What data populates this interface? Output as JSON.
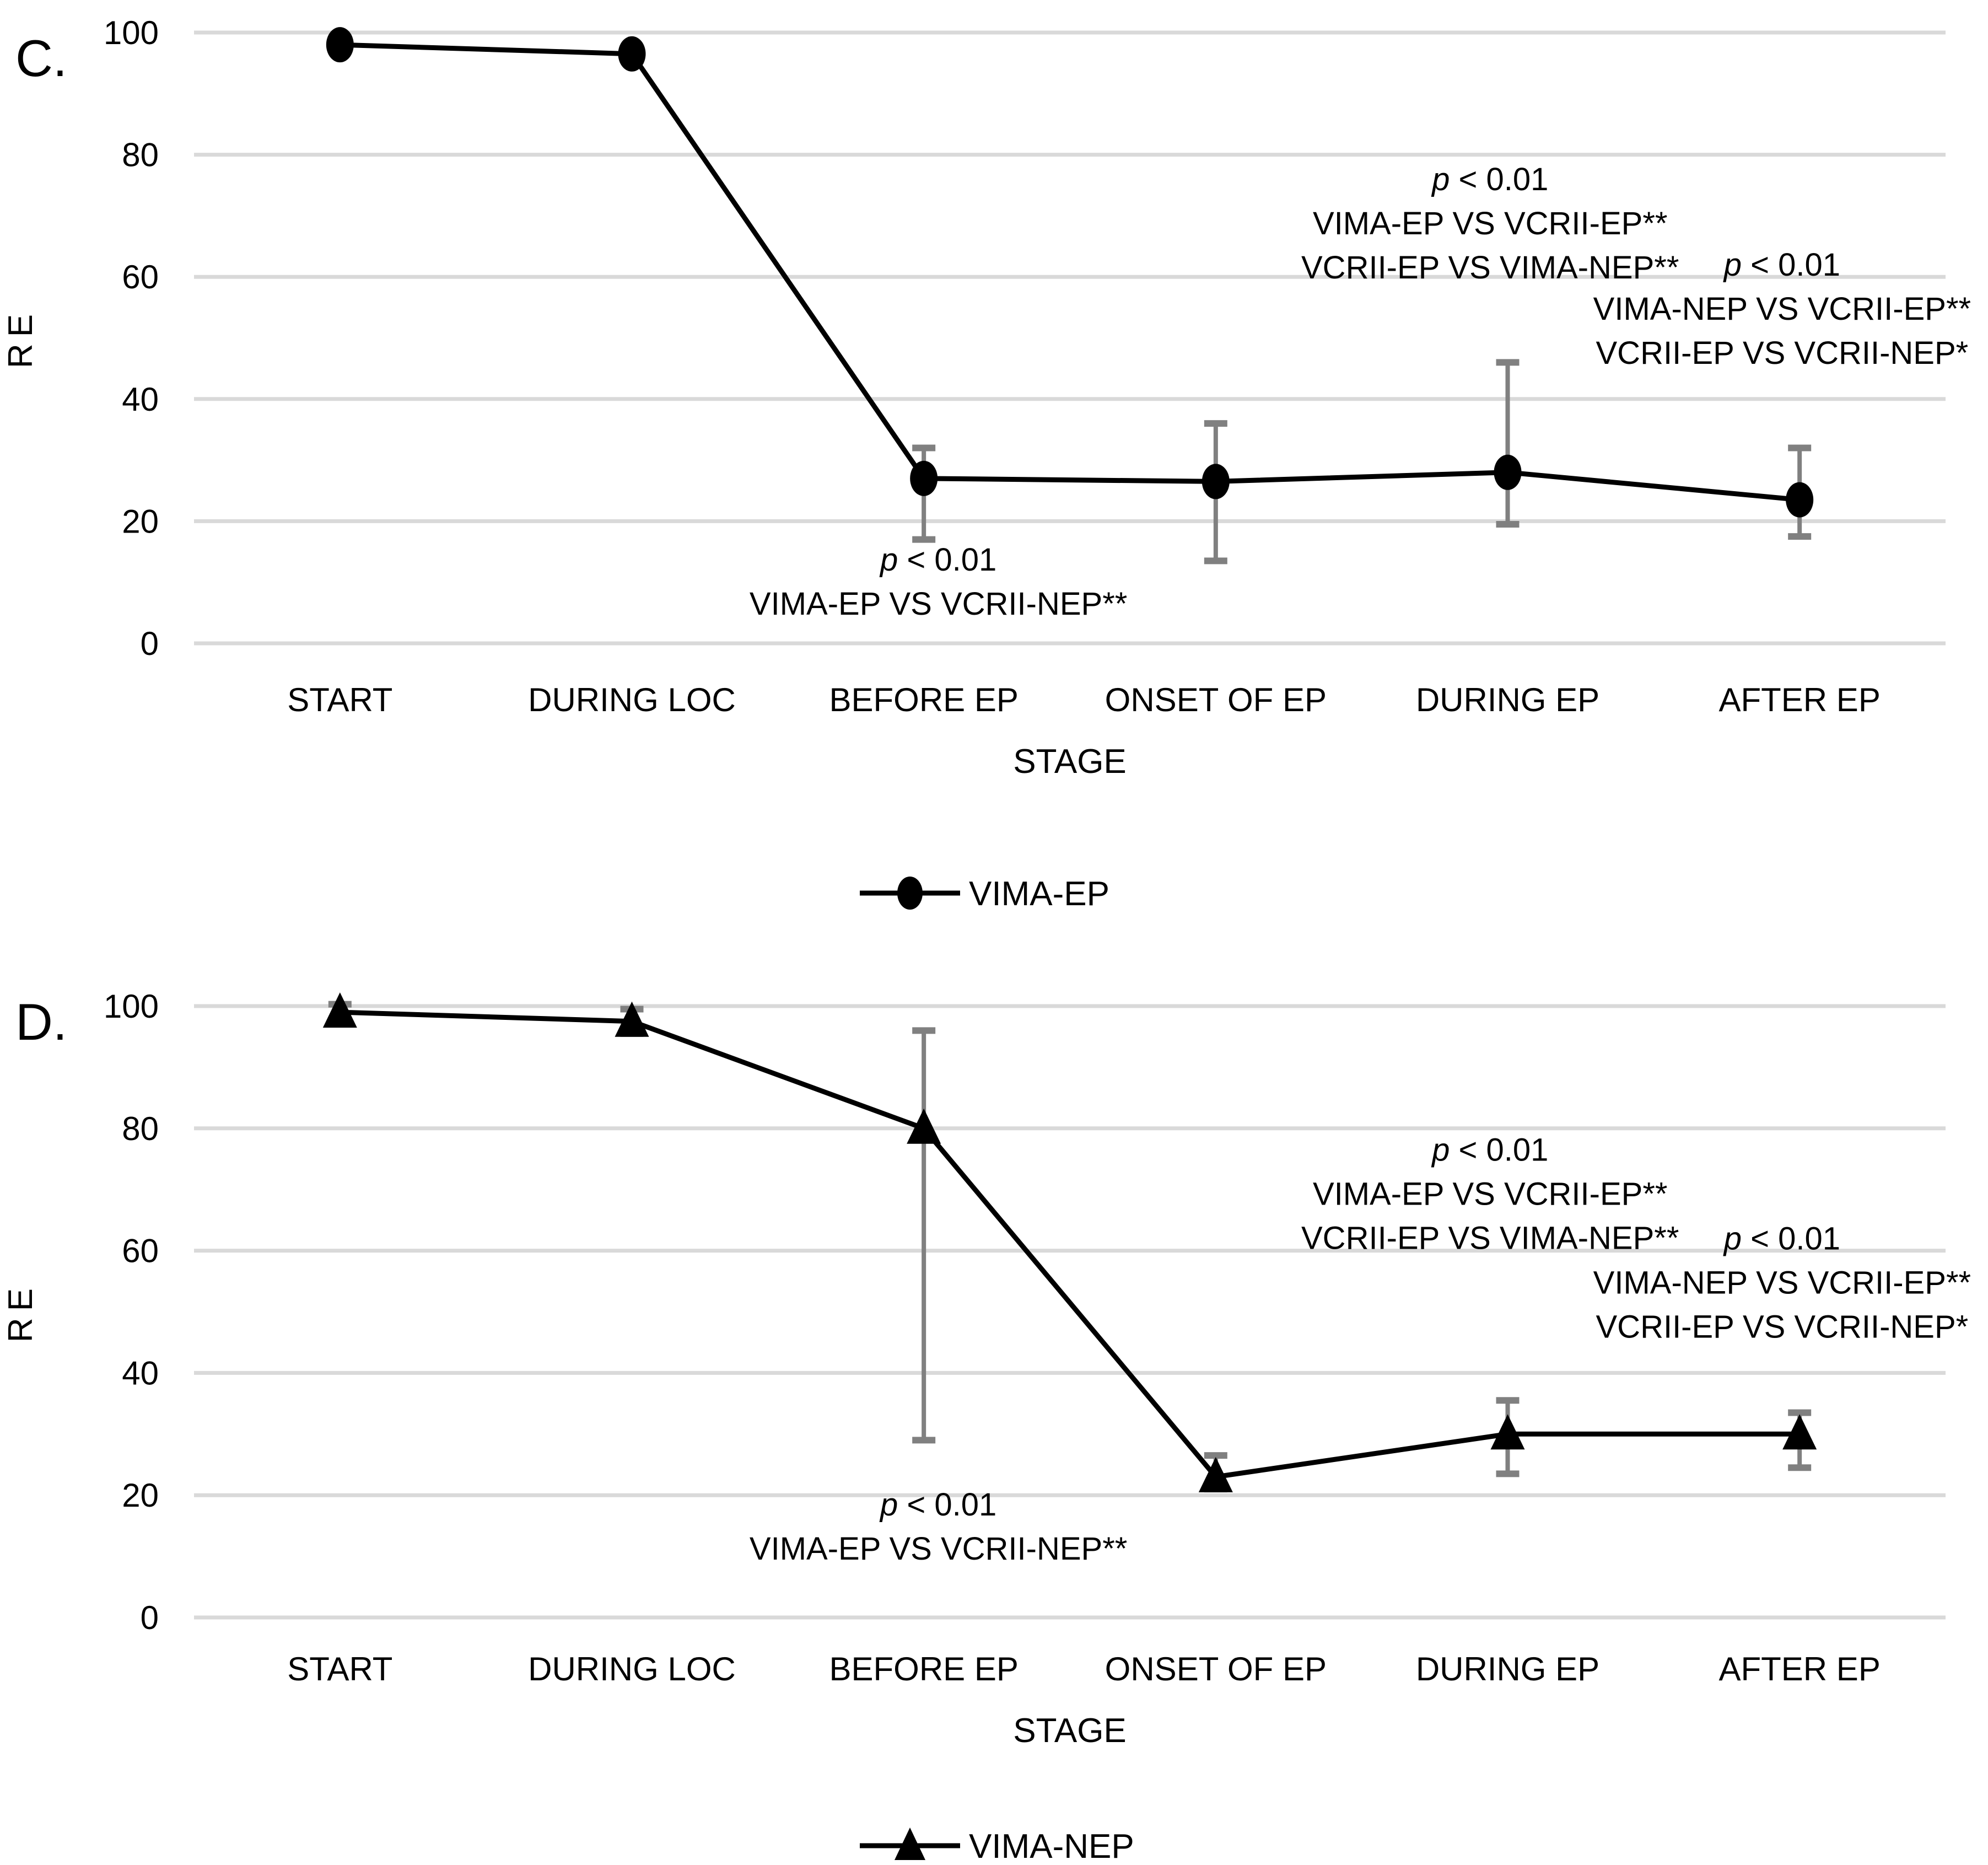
{
  "figure": {
    "panels": [
      {
        "label": "C."
      },
      {
        "label": "D."
      }
    ]
  },
  "chart_data": [
    {
      "type": "line",
      "panel": "C",
      "categories": [
        "START",
        "DURING LOC",
        "BEFORE EP",
        "ONSET OF EP",
        "DURING EP",
        "AFTER EP"
      ],
      "xlabel": "STAGE",
      "ylabel": "RE",
      "ylim": [
        0,
        100
      ],
      "yticks": [
        0,
        20,
        40,
        60,
        80,
        100
      ],
      "grid": "horizontal",
      "legend_position": "bottom-center",
      "colors": {
        "gridline": "#d9d9d9",
        "error_bar": "#808080",
        "series": "#000000",
        "text": "#000000"
      },
      "series": [
        {
          "name": "VIMA-EP",
          "marker": "circle",
          "color": "#000000",
          "values": [
            98,
            96.5,
            27,
            26.5,
            28,
            23.5
          ],
          "error_low": [
            null,
            null,
            17,
            13.5,
            19.5,
            17.5
          ],
          "error_high": [
            null,
            null,
            32,
            36,
            46,
            32
          ]
        }
      ],
      "annotations": [
        {
          "x_cat": 2.05,
          "y": 13.7,
          "lines": [
            "p < 0.01",
            "VIMA-EP VS VCRII-NEP**"
          ]
        },
        {
          "x_cat": 3.94,
          "y": 76.0,
          "lines": [
            "p < 0.01",
            "VIMA-EP VS VCRII-EP**",
            "VCRII-EP VS VIMA-NEP**"
          ]
        },
        {
          "x_cat": 4.94,
          "y": 62.0,
          "lines": [
            "p < 0.01",
            "VIMA-NEP VS VCRII-EP**",
            "VCRII-EP VS VCRII-NEP*"
          ]
        }
      ]
    },
    {
      "type": "line",
      "panel": "D",
      "categories": [
        "START",
        "DURING LOC",
        "BEFORE EP",
        "ONSET OF EP",
        "DURING EP",
        "AFTER EP"
      ],
      "xlabel": "STAGE",
      "ylabel": "RE",
      "ylim": [
        0,
        100
      ],
      "yticks": [
        0,
        20,
        40,
        60,
        80,
        100
      ],
      "grid": "horizontal",
      "legend_position": "bottom-center",
      "colors": {
        "gridline": "#d9d9d9",
        "error_bar": "#808080",
        "series": "#000000",
        "text": "#000000"
      },
      "series": [
        {
          "name": "VIMA-NEP",
          "marker": "triangle",
          "color": "#000000",
          "values": [
            99,
            97.5,
            80,
            23,
            30,
            30
          ],
          "error_low": [
            97.5,
            95.5,
            29,
            21,
            23.5,
            24.5
          ],
          "error_high": [
            100.3,
            99.5,
            96,
            26.5,
            35.5,
            33.5
          ]
        }
      ],
      "annotations": [
        {
          "x_cat": 2.05,
          "y": 18.5,
          "lines": [
            "p < 0.01",
            "VIMA-EP VS VCRII-NEP**"
          ]
        },
        {
          "x_cat": 3.94,
          "y": 76.5,
          "lines": [
            "p < 0.01",
            "VIMA-EP VS VCRII-EP**",
            "VCRII-EP VS VIMA-NEP**"
          ]
        },
        {
          "x_cat": 4.94,
          "y": 62.0,
          "lines": [
            "p < 0.01",
            "VIMA-NEP VS VCRII-EP**",
            "VCRII-EP VS VCRII-NEP*"
          ]
        }
      ]
    }
  ]
}
